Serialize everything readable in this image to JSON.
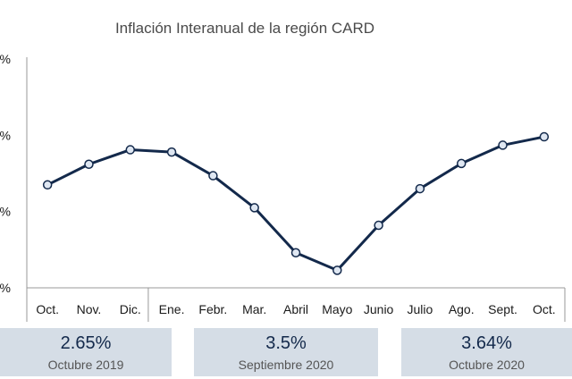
{
  "chart_data": {
    "type": "line",
    "title": "Inflación Interanual de la región CARD",
    "categories": [
      "Oct.",
      "Nov.",
      "Dic.",
      "Ene.",
      "Febr.",
      "Mar.",
      "Abril",
      "Mayo",
      "Junio",
      "Julio",
      "Ago.",
      "Sept.",
      "Oct."
    ],
    "series": [
      {
        "values": [
          3.25,
          3.52,
          3.71,
          3.68,
          3.37,
          2.95,
          2.36,
          2.13,
          2.72,
          3.2,
          3.53,
          3.77,
          3.88
        ]
      }
    ],
    "ylim": [
      1.9,
      4.9
    ],
    "yticks": [
      4.9,
      3.9,
      2.9,
      1.9
    ],
    "ytick_labels": [
      "%",
      "%",
      "%",
      "%"
    ],
    "legend": "none",
    "grid": false,
    "colors": {
      "line": "#13294b",
      "marker_fill": "#dfe7f2",
      "axis": "#999999"
    }
  },
  "stats": [
    {
      "value": "2.65%",
      "label": "Octubre 2019"
    },
    {
      "value": "3.5%",
      "label": "Septiembre 2020"
    },
    {
      "value": "3.64%",
      "label": "Octubre 2020"
    }
  ]
}
